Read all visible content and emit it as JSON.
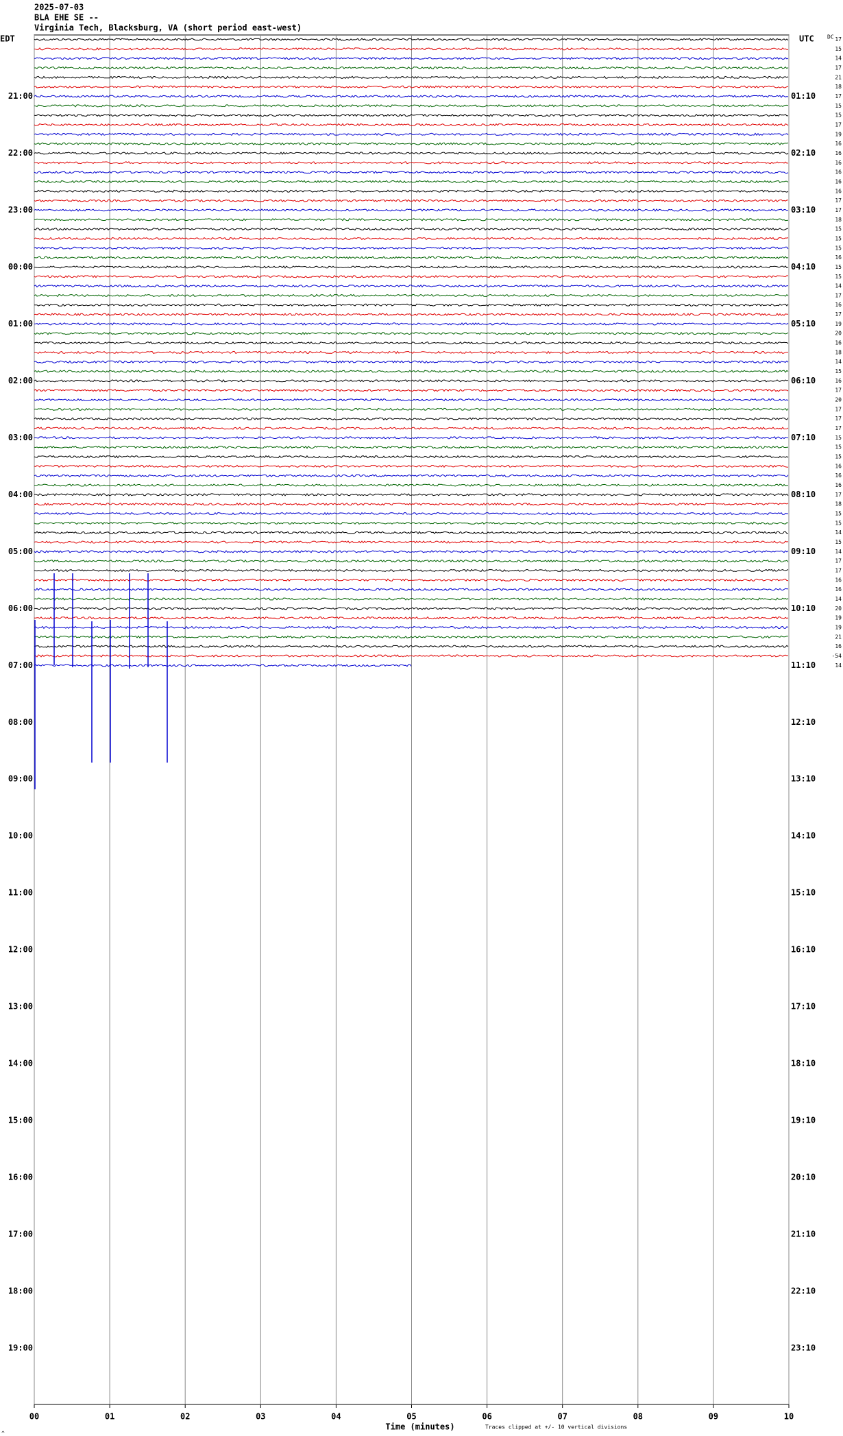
{
  "header": {
    "date": "2025-07-03",
    "station": "BLA EHE SE --",
    "location": "Virginia Tech, Blacksburg, VA (short period east-west)"
  },
  "left_axis": {
    "title": "EDT",
    "labels": [
      "21:00",
      "22:00",
      "23:00",
      "00:00",
      "01:00",
      "02:00",
      "03:00",
      "04:00",
      "05:00",
      "06:00",
      "07:00",
      "08:00",
      "09:00",
      "10:00",
      "11:00",
      "12:00",
      "13:00",
      "14:00",
      "15:00",
      "16:00",
      "17:00",
      "18:00",
      "19:00"
    ]
  },
  "right_axis": {
    "title": "UTC",
    "labels": [
      "01:10",
      "02:10",
      "03:10",
      "04:10",
      "05:10",
      "06:10",
      "07:10",
      "08:10",
      "09:10",
      "10:10",
      "11:10",
      "12:10",
      "13:10",
      "14:10",
      "15:10",
      "16:10",
      "17:10",
      "18:10",
      "19:10",
      "20:10",
      "21:10",
      "22:10",
      "23:10"
    ]
  },
  "dc_title": "DC",
  "dc_values": [
    17,
    15,
    14,
    17,
    21,
    18,
    17,
    15,
    15,
    17,
    19,
    16,
    16,
    16,
    16,
    16,
    16,
    17,
    17,
    18,
    15,
    15,
    15,
    16,
    15,
    15,
    14,
    17,
    16,
    17,
    19,
    20,
    16,
    18,
    14,
    15,
    16,
    17,
    20,
    17,
    17,
    17,
    15,
    15,
    15,
    16,
    16,
    16,
    17,
    18,
    15,
    15,
    14,
    15,
    14,
    17,
    17,
    16,
    16,
    14,
    20,
    19,
    19,
    21,
    16,
    -54,
    14
  ],
  "x_axis": {
    "title": "Time (minutes)",
    "ticks": [
      "00",
      "01",
      "02",
      "03",
      "04",
      "05",
      "06",
      "07",
      "08",
      "09",
      "10"
    ]
  },
  "note": "Traces clipped at +/- 10 vertical divisions",
  "trace_colors": [
    "#000000",
    "#e00000",
    "#0000d0",
    "#006400"
  ],
  "last_trace_end_minute": 5
}
